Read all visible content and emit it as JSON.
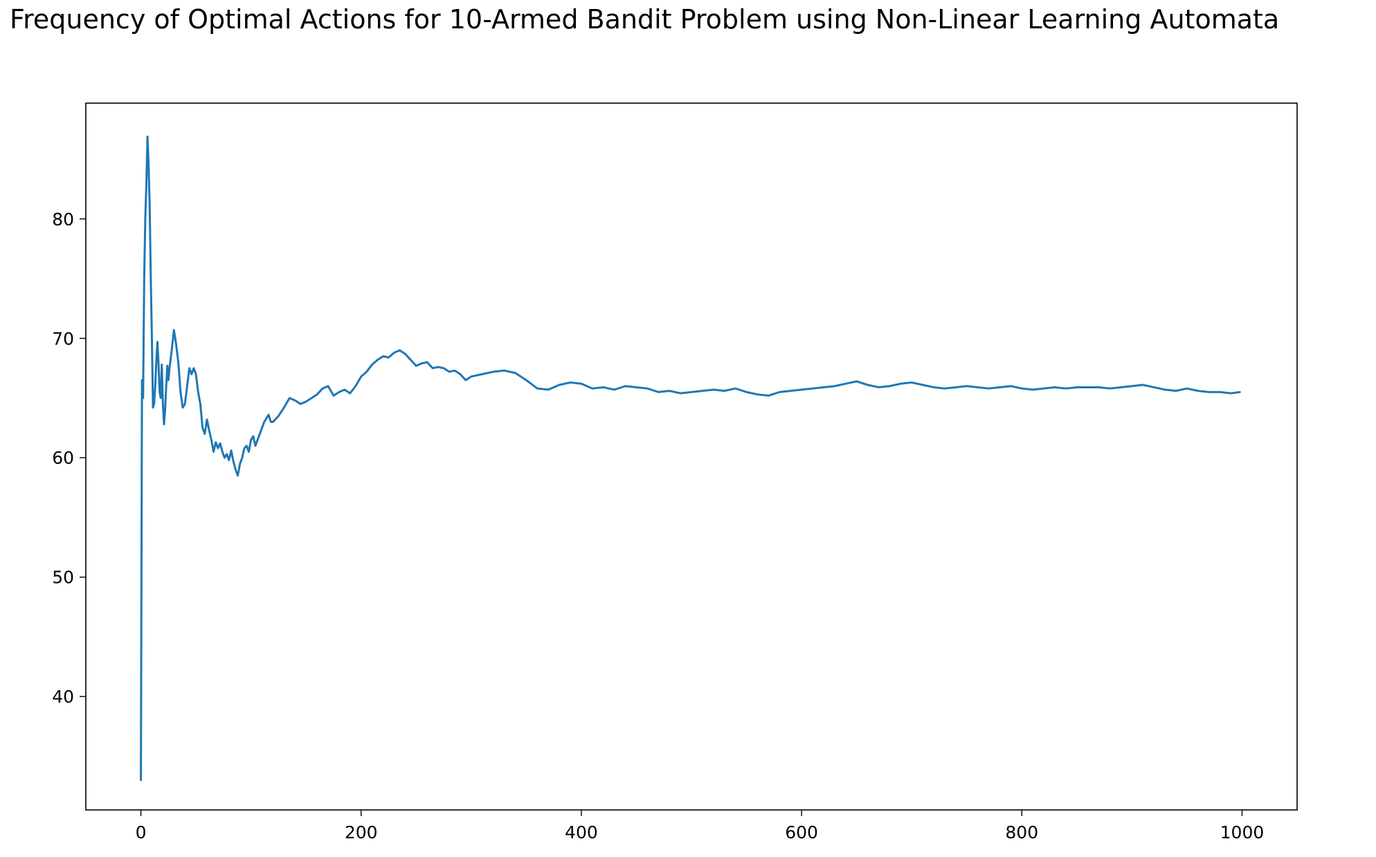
{
  "chart_data": {
    "type": "line",
    "title": "Frequency of Optimal Actions for 10-Armed Bandit Problem using Non-Linear Learning Automata",
    "xlabel": "",
    "ylabel": "",
    "xlim": [
      -50,
      1050
    ],
    "ylim": [
      30.5,
      89.7
    ],
    "xticks": [
      0,
      200,
      400,
      600,
      800,
      1000
    ],
    "yticks": [
      40,
      50,
      60,
      70,
      80
    ],
    "grid": false,
    "color": "#1f77b4",
    "series": [
      {
        "x": [
          0,
          1,
          2,
          3,
          4,
          5,
          6,
          7,
          8,
          9,
          10,
          11,
          12,
          13,
          14,
          15,
          16,
          17,
          18,
          19,
          20,
          21,
          22,
          23,
          24,
          25,
          26,
          28,
          30,
          32,
          34,
          36,
          38,
          40,
          42,
          44,
          46,
          48,
          50,
          52,
          54,
          56,
          58,
          60,
          62,
          64,
          66,
          68,
          70,
          72,
          74,
          76,
          78,
          80,
          82,
          84,
          86,
          88,
          90,
          92,
          94,
          96,
          98,
          100,
          102,
          104,
          106,
          108,
          110,
          112,
          114,
          116,
          118,
          120,
          125,
          130,
          135,
          140,
          145,
          150,
          155,
          160,
          165,
          170,
          175,
          180,
          185,
          190,
          195,
          200,
          205,
          210,
          215,
          220,
          225,
          230,
          235,
          240,
          245,
          250,
          255,
          260,
          265,
          270,
          275,
          280,
          285,
          290,
          295,
          300,
          310,
          320,
          330,
          340,
          350,
          360,
          370,
          380,
          390,
          400,
          410,
          420,
          430,
          440,
          450,
          460,
          470,
          480,
          490,
          500,
          510,
          520,
          530,
          540,
          550,
          560,
          570,
          580,
          590,
          600,
          610,
          620,
          630,
          640,
          650,
          660,
          670,
          680,
          690,
          700,
          710,
          720,
          730,
          740,
          750,
          760,
          770,
          780,
          790,
          800,
          810,
          820,
          830,
          840,
          850,
          860,
          870,
          880,
          890,
          900,
          910,
          920,
          930,
          940,
          950,
          960,
          970,
          980,
          990,
          998
        ],
        "y": [
          33.0,
          66.5,
          65.0,
          75.0,
          80.0,
          83.0,
          86.9,
          84.5,
          81.0,
          75.0,
          70.0,
          64.2,
          64.5,
          66.0,
          68.0,
          69.7,
          68.0,
          65.5,
          65.0,
          67.8,
          64.5,
          62.8,
          64.0,
          66.0,
          67.7,
          66.5,
          67.5,
          69.0,
          70.7,
          69.5,
          68.0,
          65.5,
          64.2,
          64.5,
          66.0,
          67.5,
          67.0,
          67.5,
          67.0,
          65.5,
          64.5,
          62.5,
          62.0,
          63.2,
          62.3,
          61.5,
          60.5,
          61.3,
          60.8,
          61.2,
          60.5,
          60.0,
          60.3,
          59.8,
          60.6,
          59.7,
          59.0,
          58.5,
          59.5,
          60.0,
          60.8,
          61.0,
          60.5,
          61.5,
          61.8,
          61.0,
          61.5,
          62.0,
          62.5,
          63.0,
          63.3,
          63.6,
          63.0,
          63.0,
          63.5,
          64.2,
          65.0,
          64.8,
          64.5,
          64.7,
          65.0,
          65.3,
          65.8,
          66.0,
          65.2,
          65.5,
          65.7,
          65.4,
          66.0,
          66.8,
          67.2,
          67.8,
          68.2,
          68.5,
          68.4,
          68.8,
          69.0,
          68.7,
          68.2,
          67.7,
          67.9,
          68.0,
          67.5,
          67.6,
          67.5,
          67.2,
          67.3,
          67.0,
          66.5,
          66.8,
          67.0,
          67.2,
          67.3,
          67.1,
          66.5,
          65.8,
          65.7,
          66.1,
          66.3,
          66.2,
          65.8,
          65.9,
          65.7,
          66.0,
          65.9,
          65.8,
          65.5,
          65.6,
          65.4,
          65.5,
          65.6,
          65.7,
          65.6,
          65.8,
          65.5,
          65.3,
          65.2,
          65.5,
          65.6,
          65.7,
          65.8,
          65.9,
          66.0,
          66.2,
          66.4,
          66.1,
          65.9,
          66.0,
          66.2,
          66.3,
          66.1,
          65.9,
          65.8,
          65.9,
          66.0,
          65.9,
          65.8,
          65.9,
          66.0,
          65.8,
          65.7,
          65.8,
          65.9,
          65.8,
          65.9,
          65.9,
          65.9,
          65.8,
          65.9,
          66.0,
          66.1,
          65.9,
          65.7,
          65.6,
          65.8,
          65.6,
          65.5,
          65.5,
          65.4,
          65.5
        ]
      }
    ]
  }
}
